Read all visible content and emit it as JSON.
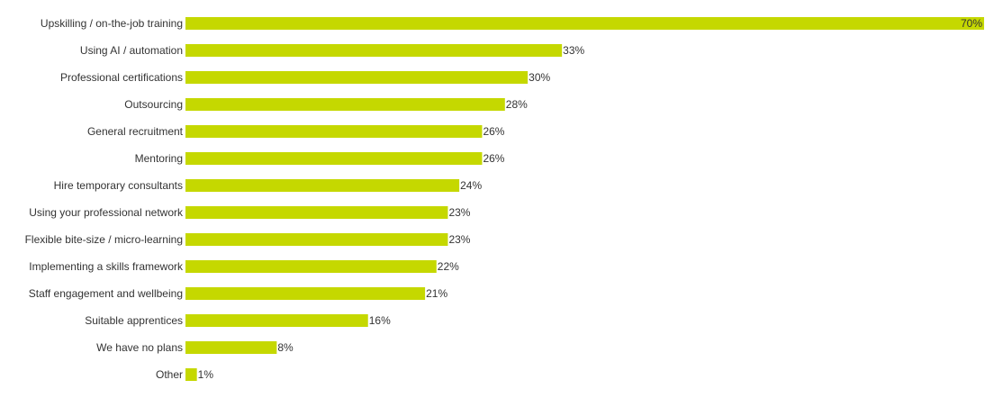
{
  "chart_data": {
    "type": "bar",
    "orientation": "horizontal",
    "categories": [
      "Upskilling / on-the-job training",
      "Using AI / automation",
      "Professional certifications",
      "Outsourcing",
      "General recruitment",
      "Mentoring",
      "Hire temporary consultants",
      "Using your professional network",
      "Flexible bite-size / micro-learning",
      "Implementing a skills framework",
      "Staff engagement and wellbeing",
      "Suitable apprentices",
      "We have no plans",
      "Other"
    ],
    "values": [
      70,
      33,
      30,
      28,
      26,
      26,
      24,
      23,
      23,
      22,
      21,
      16,
      8,
      1
    ],
    "value_labels": [
      "70%",
      "33%",
      "30%",
      "28%",
      "26%",
      "26%",
      "24%",
      "23%",
      "23%",
      "22%",
      "21%",
      "16%",
      "8%",
      "1%"
    ],
    "unit": "%",
    "xlim": [
      0,
      70
    ],
    "grid": false,
    "legend": "none",
    "bar_color": "#c5d800",
    "text_color": "#333333"
  }
}
